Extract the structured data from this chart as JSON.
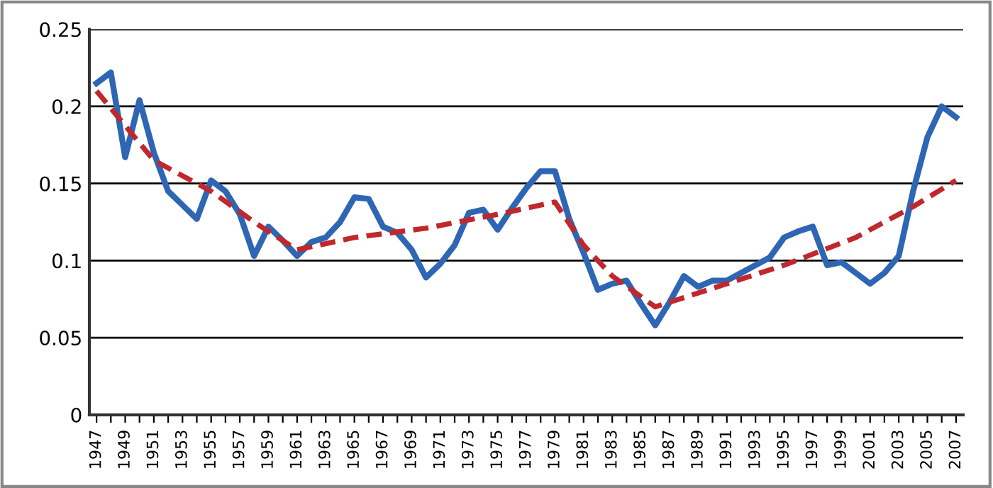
{
  "chart_data": {
    "type": "line",
    "x": [
      1947,
      1948,
      1949,
      1950,
      1951,
      1952,
      1953,
      1954,
      1955,
      1956,
      1957,
      1958,
      1959,
      1960,
      1961,
      1962,
      1963,
      1964,
      1965,
      1966,
      1967,
      1968,
      1969,
      1970,
      1971,
      1972,
      1973,
      1974,
      1975,
      1976,
      1977,
      1978,
      1979,
      1980,
      1981,
      1982,
      1983,
      1984,
      1985,
      1986,
      1987,
      1988,
      1989,
      1990,
      1991,
      1992,
      1993,
      1994,
      1995,
      1996,
      1997,
      1998,
      1999,
      2000,
      2001,
      2002,
      2003,
      2004,
      2005,
      2006,
      2007
    ],
    "series": [
      {
        "color": "#2e66b4",
        "line_style": "solid",
        "values": [
          0.215,
          0.222,
          0.167,
          0.204,
          0.17,
          0.145,
          0.136,
          0.127,
          0.152,
          0.145,
          0.13,
          0.103,
          0.122,
          0.113,
          0.103,
          0.112,
          0.115,
          0.125,
          0.141,
          0.14,
          0.122,
          0.118,
          0.107,
          0.089,
          0.098,
          0.11,
          0.131,
          0.133,
          0.12,
          0.134,
          0.147,
          0.158,
          0.158,
          0.127,
          0.105,
          0.081,
          0.085,
          0.087,
          0.072,
          0.058,
          0.073,
          0.09,
          0.083,
          0.087,
          0.087,
          0.092,
          0.097,
          0.102,
          0.115,
          0.119,
          0.122,
          0.097,
          0.099,
          0.092,
          0.085,
          0.092,
          0.103,
          0.145,
          0.18,
          0.2,
          0.193
        ]
      },
      {
        "color": "#c0282d",
        "line_style": "dashed",
        "x": [
          1947,
          1951,
          1955,
          1958,
          1961,
          1965,
          1970,
          1975,
          1979,
          1981,
          1983,
          1986,
          1990,
          1995,
          2000,
          2004,
          2007
        ],
        "values": [
          0.21,
          0.165,
          0.145,
          0.125,
          0.107,
          0.115,
          0.121,
          0.13,
          0.138,
          0.11,
          0.09,
          0.07,
          0.082,
          0.097,
          0.115,
          0.135,
          0.152
        ]
      }
    ],
    "xlim": [
      1946.5,
      2007.5
    ],
    "xticks": [
      1947,
      {
        "value": 1948,
        "label": null
      },
      1949,
      {
        "value": 1950,
        "label": null
      },
      1951,
      {
        "value": 1952,
        "label": null
      },
      1953,
      {
        "value": 1954,
        "label": null
      },
      1955,
      {
        "value": 1956,
        "label": null
      },
      1957,
      {
        "value": 1958,
        "label": null
      },
      1959,
      {
        "value": 1960,
        "label": null
      },
      1961,
      {
        "value": 1962,
        "label": null
      },
      1963,
      {
        "value": 1964,
        "label": null
      },
      1965,
      {
        "value": 1966,
        "label": null
      },
      1967,
      {
        "value": 1968,
        "label": null
      },
      1969,
      {
        "value": 1970,
        "label": null
      },
      1971,
      {
        "value": 1972,
        "label": null
      },
      1973,
      {
        "value": 1974,
        "label": null
      },
      1975,
      {
        "value": 1976,
        "label": null
      },
      1977,
      {
        "value": 1978,
        "label": null
      },
      1979,
      {
        "value": 1980,
        "label": null
      },
      1981,
      {
        "value": 1982,
        "label": null
      },
      1983,
      {
        "value": 1984,
        "label": null
      },
      1985,
      {
        "value": 1986,
        "label": null
      },
      1987,
      {
        "value": 1988,
        "label": null
      },
      1989,
      {
        "value": 1990,
        "label": null
      },
      1991,
      {
        "value": 1992,
        "label": null
      },
      1993,
      {
        "value": 1994,
        "label": null
      },
      1995,
      {
        "value": 1996,
        "label": null
      },
      1997,
      {
        "value": 1998,
        "label": null
      },
      1999,
      {
        "value": 2000,
        "label": null
      },
      2001,
      {
        "value": 2002,
        "label": null
      },
      2003,
      {
        "value": 2004,
        "label": null
      },
      2005,
      {
        "value": 2006,
        "label": null
      },
      2007
    ],
    "ylim": [
      0,
      0.25
    ],
    "yticks": [
      0,
      0.05,
      0.1,
      0.15,
      0.2,
      0.25
    ],
    "grid": "y",
    "legend": false,
    "marker": "none"
  }
}
